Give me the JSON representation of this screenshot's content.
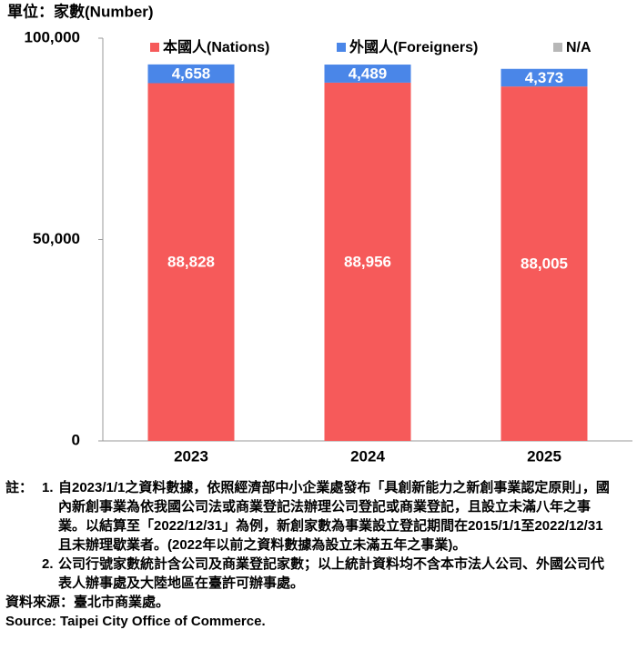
{
  "chart_data": {
    "type": "stacked_bar",
    "y_label": "單位：家數(Number)",
    "categories": [
      "2023",
      "2024",
      "2025"
    ],
    "series": [
      {
        "name": "本國人(Nations)",
        "color": "#f65a5a",
        "values": [
          88828,
          88956,
          88005
        ],
        "value_labels": [
          "88,828",
          "88,956",
          "88,005"
        ]
      },
      {
        "name": "外國人(Foreigners)",
        "color": "#4a86e8",
        "values": [
          4658,
          4489,
          4373
        ],
        "value_labels": [
          "4,658",
          "4,489",
          "4,373"
        ]
      },
      {
        "name": "N/A",
        "color": "#b7b7b7",
        "values": [
          0,
          0,
          0
        ]
      }
    ],
    "ylim": [
      0,
      100000
    ],
    "yticks": [
      0,
      {
        "value": 50000,
        "label": "50,000"
      },
      {
        "value": 100000,
        "label": "100,000"
      }
    ],
    "legend": "top"
  },
  "notes": {
    "label": "註：",
    "items": [
      {
        "num": "1.",
        "text": "自2023/1/1之資料數據，依照經濟部中小企業處發布「具創新能力之新創事業認定原則」，國內新創事業為依我國公司法或商業登記法辦理公司登記或商業登記，且設立未滿八年之事業。以結算至「2022/12/31」為例，新創家數為事業設立登記期間在2015/1/1至2022/12/31且未辦理歇業者。(2022年以前之資料數據為設立未滿五年之事業)。"
      },
      {
        "num": "2.",
        "text": "公司行號家數統計含公司及商業登記家數；以上統計資料均不含本市法人公司、外國公司代表人辦事處及大陸地區在臺許可辦事處。"
      }
    ]
  },
  "source_zh": "資料來源：臺北市商業處。",
  "source_en": "Source: Taipei City Office of Commerce."
}
